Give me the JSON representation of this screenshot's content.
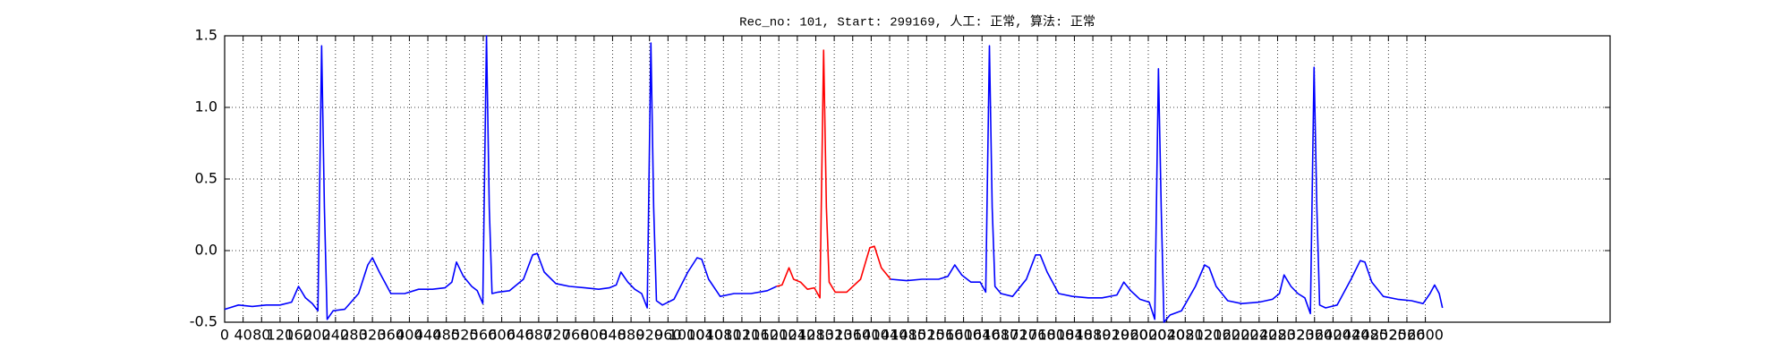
{
  "chart_data": {
    "type": "line",
    "title": "Rec_no: 101, Start: 299169, 人工: 正常, 算法: 正常",
    "xlim": [
      0,
      3000
    ],
    "ylim": [
      -0.5,
      1.5
    ],
    "xticks": [
      0,
      40,
      80,
      120,
      160,
      200,
      240,
      280,
      320,
      360,
      400,
      440,
      480,
      520,
      560,
      600,
      640,
      680,
      720,
      760,
      800,
      840,
      880,
      920,
      960,
      1000,
      1040,
      1080,
      1120,
      1160,
      1200,
      1240,
      1280,
      1320,
      1360,
      1400,
      1440,
      1480,
      1520,
      1560,
      1600,
      1640,
      1680,
      1720,
      1760,
      1800,
      1840,
      1880,
      1920,
      1960,
      2000,
      2040,
      2080,
      2120,
      2160,
      2200,
      2240,
      2280,
      2320,
      2360,
      2400,
      2440,
      2480,
      2520,
      2560,
      2600
    ],
    "yticks": [
      -0.5,
      {
        "value": 0,
        "label": "0.0"
      },
      0.5,
      {
        "value": 1,
        "label": "1.0"
      },
      1.5
    ],
    "grid": true,
    "series": [
      {
        "color": "#0000ff",
        "x": [
          0,
          30,
          60,
          90,
          120,
          145,
          160,
          175,
          190,
          202,
          210,
          216,
          222,
          235,
          260,
          290,
          310,
          320,
          335,
          360,
          390,
          420,
          450,
          477,
          492,
          502,
          517,
          535,
          547,
          559,
          567,
          573,
          579,
          592,
          617,
          647,
          667,
          677,
          692,
          717,
          747,
          780,
          810,
          833,
          848,
          858,
          873,
          888,
          903,
          915,
          923,
          929,
          935,
          948,
          973,
          1003,
          1023,
          1033,
          1048,
          1073,
          1103,
          1140,
          1175,
          1195,
          1300,
          1442,
          1477,
          1510,
          1546,
          1566,
          1581,
          1596,
          1616,
          1636,
          1648,
          1656,
          1662,
          1668,
          1681,
          1706,
          1736,
          1756,
          1766,
          1781,
          1806,
          1836,
          1870,
          1900,
          1932,
          1947,
          1962,
          1982,
          2002,
          2014,
          2022,
          2028,
          2034,
          2047,
          2072,
          2102,
          2122,
          2132,
          2147,
          2172,
          2202,
          2240,
          2269,
          2284,
          2294,
          2309,
          2324,
          2339,
          2351,
          2359,
          2365,
          2371,
          2384,
          2409,
          2439,
          2459,
          2469,
          2484,
          2509,
          2540,
          2570,
          2595,
          2610,
          2620,
          2630,
          2637
        ],
        "values": [
          -0.41,
          -0.38,
          -0.39,
          -0.38,
          -0.38,
          -0.36,
          -0.25,
          -0.33,
          -0.37,
          -0.42,
          1.43,
          0.3,
          -0.48,
          -0.42,
          -0.41,
          -0.3,
          -0.1,
          -0.05,
          -0.15,
          -0.3,
          -0.3,
          -0.27,
          -0.27,
          -0.26,
          -0.22,
          -0.08,
          -0.18,
          -0.25,
          -0.28,
          -0.37,
          1.5,
          0.3,
          -0.3,
          -0.29,
          -0.28,
          -0.2,
          -0.03,
          -0.02,
          -0.15,
          -0.23,
          -0.25,
          -0.26,
          -0.27,
          -0.26,
          -0.24,
          -0.15,
          -0.22,
          -0.27,
          -0.3,
          -0.4,
          1.45,
          0.3,
          -0.35,
          -0.38,
          -0.34,
          -0.15,
          -0.05,
          -0.06,
          -0.2,
          -0.32,
          -0.3,
          -0.3,
          -0.28,
          -0.25,
          null,
          -0.2,
          -0.21,
          -0.2,
          -0.2,
          -0.18,
          -0.1,
          -0.17,
          -0.22,
          -0.22,
          -0.29,
          1.43,
          0.3,
          -0.25,
          -0.3,
          -0.32,
          -0.2,
          -0.03,
          -0.03,
          -0.15,
          -0.3,
          -0.32,
          -0.33,
          -0.33,
          -0.31,
          -0.22,
          -0.28,
          -0.34,
          -0.36,
          -0.48,
          1.27,
          0.3,
          -0.5,
          -0.45,
          -0.42,
          -0.25,
          -0.1,
          -0.12,
          -0.25,
          -0.35,
          -0.37,
          -0.36,
          -0.34,
          -0.3,
          -0.17,
          -0.25,
          -0.3,
          -0.33,
          -0.44,
          1.28,
          0.3,
          -0.38,
          -0.4,
          -0.38,
          -0.2,
          -0.07,
          -0.08,
          -0.22,
          -0.32,
          -0.34,
          -0.35,
          -0.37,
          -0.3,
          -0.24,
          -0.3,
          -0.4
        ]
      },
      {
        "color": "#ff0000",
        "x": [
          1195,
          1207,
          1222,
          1232,
          1247,
          1262,
          1277,
          1289,
          1297,
          1303,
          1309,
          1322,
          1347,
          1377,
          1397,
          1407,
          1422,
          1442
        ],
        "values": [
          -0.25,
          -0.24,
          -0.12,
          -0.2,
          -0.22,
          -0.27,
          -0.26,
          -0.33,
          1.4,
          0.3,
          -0.22,
          -0.29,
          -0.29,
          -0.2,
          0.02,
          0.03,
          -0.12,
          -0.2
        ]
      }
    ]
  }
}
